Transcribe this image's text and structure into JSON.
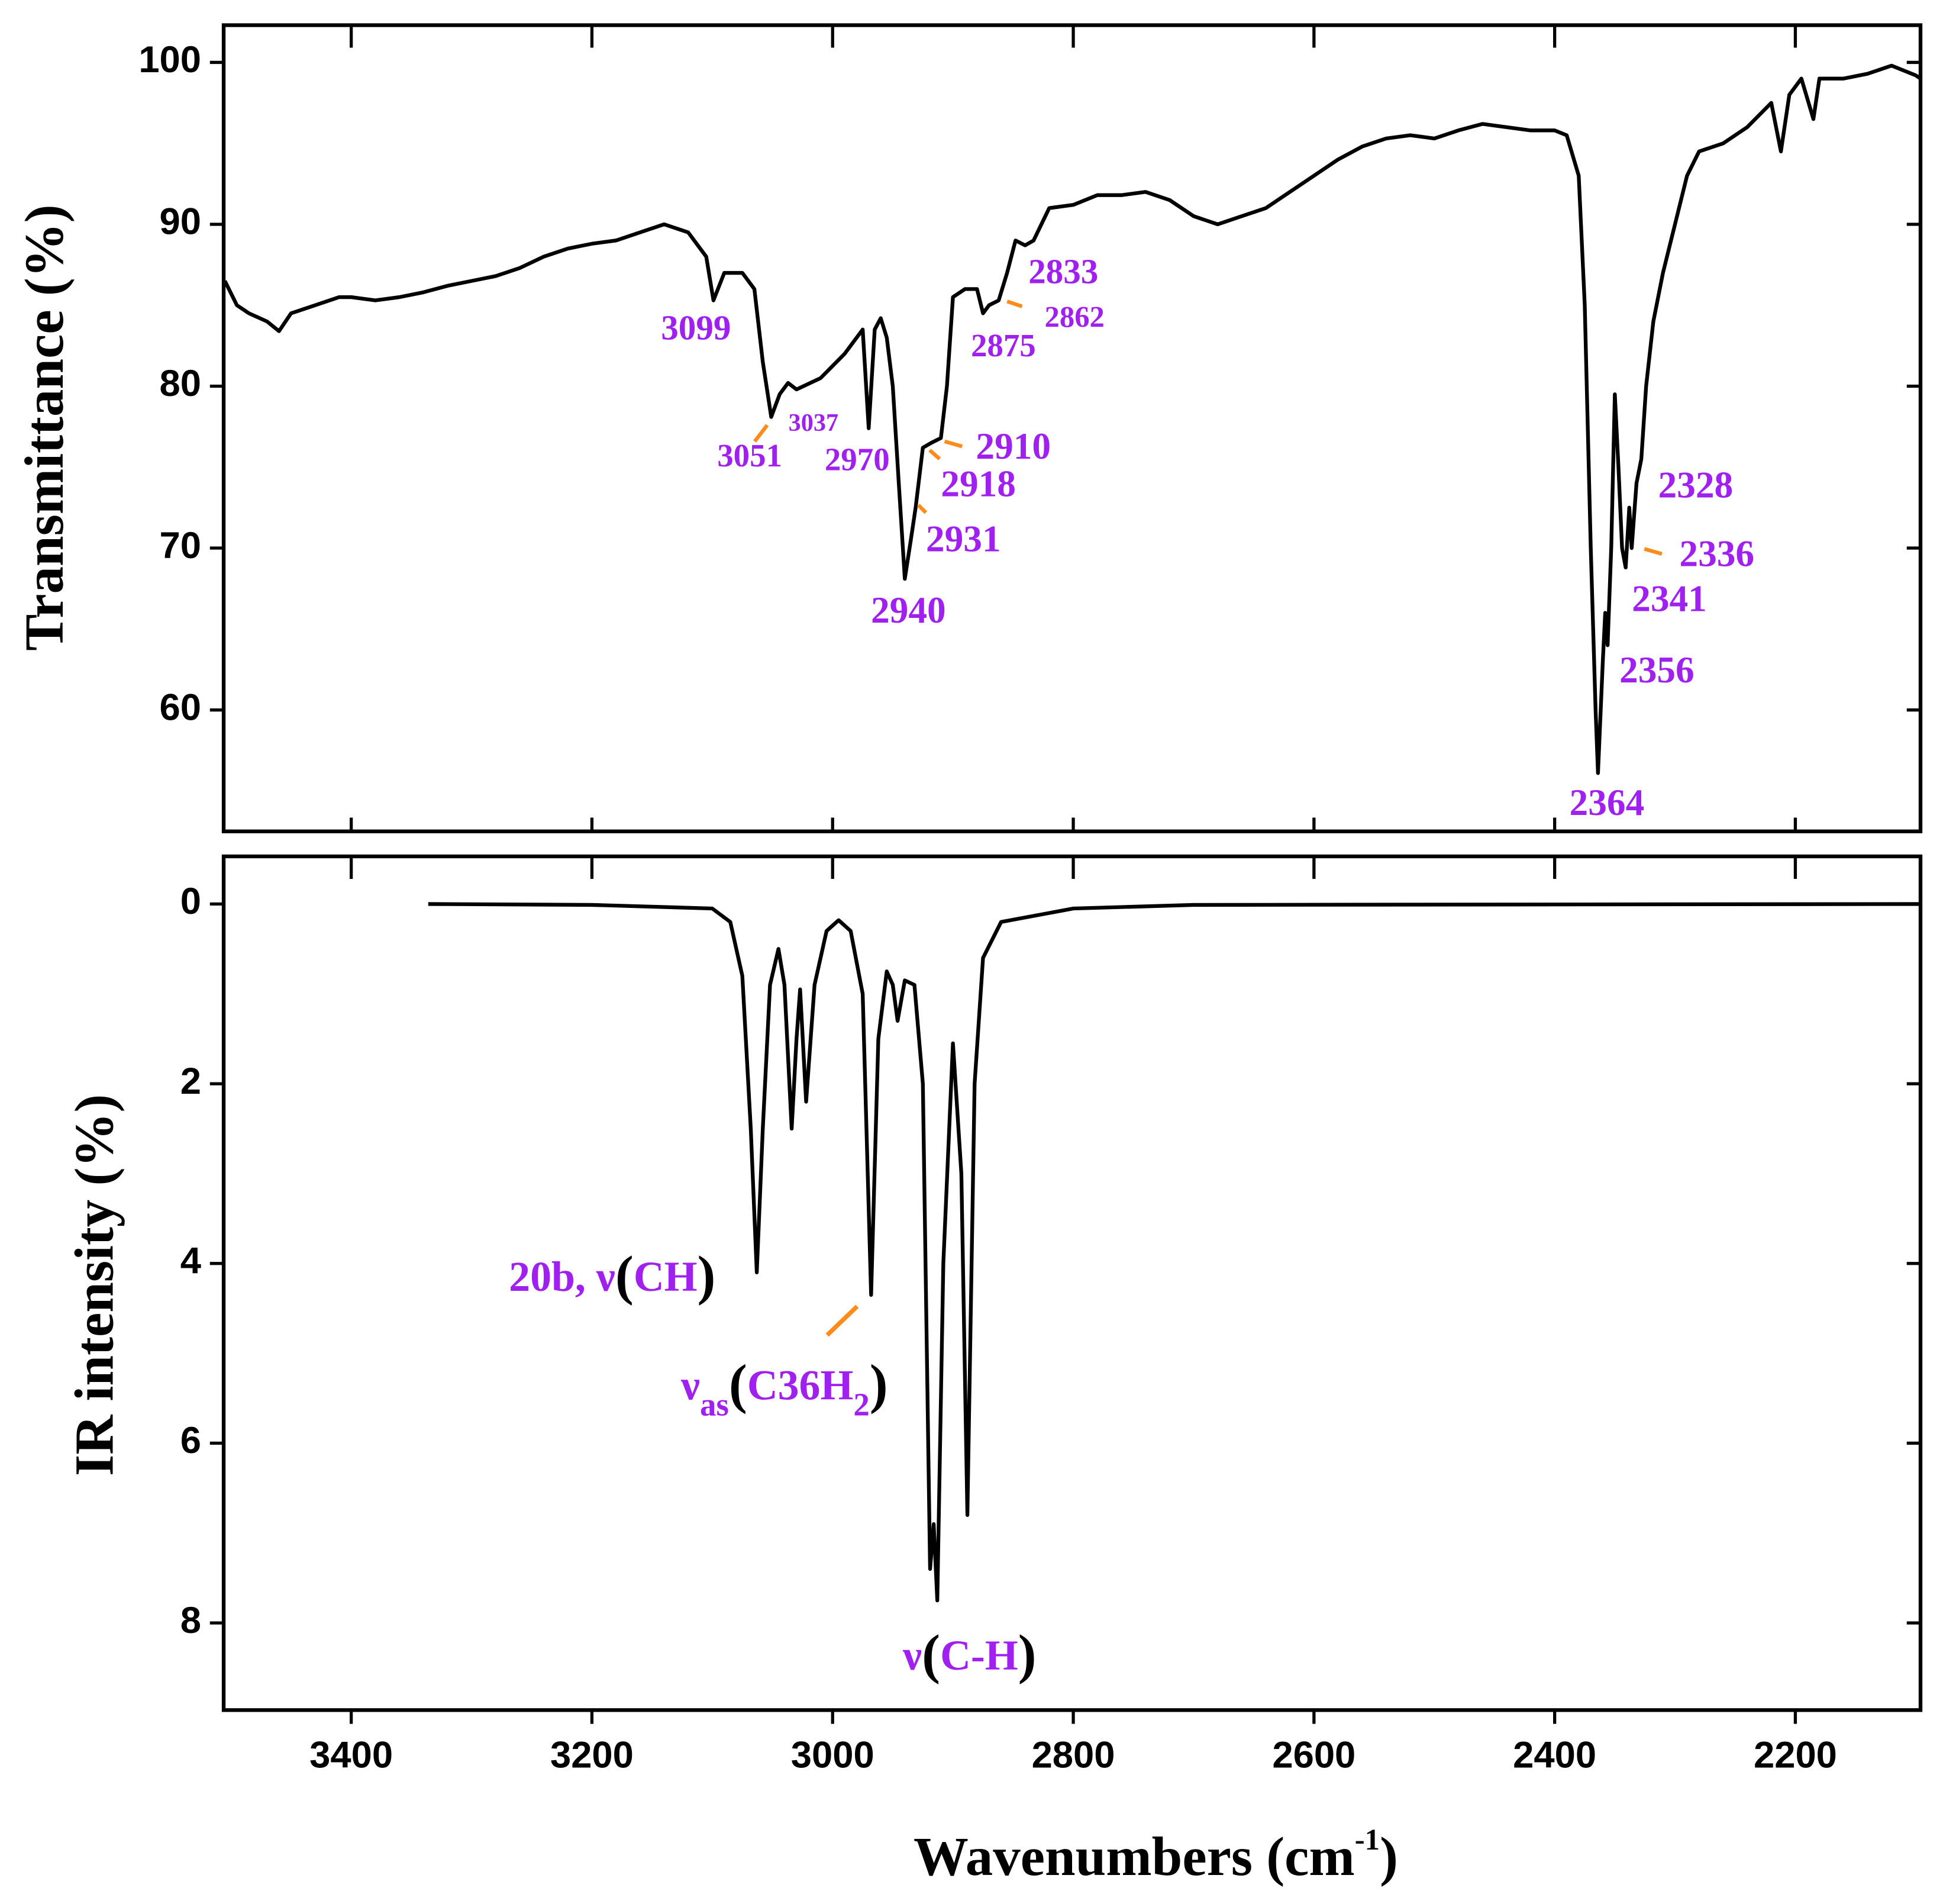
{
  "chart_data": [
    {
      "type": "line",
      "ylabel": "Transmittance (%)",
      "color": "#000000",
      "xlim": [
        3506,
        2096
      ],
      "ylim": [
        52.5,
        102.3
      ],
      "yticks": [
        60,
        70,
        80,
        90,
        100
      ],
      "x": [
        3505,
        3495,
        3485,
        3470,
        3460,
        3450,
        3430,
        3410,
        3400,
        3380,
        3360,
        3340,
        3320,
        3300,
        3280,
        3260,
        3240,
        3220,
        3200,
        3180,
        3160,
        3140,
        3120,
        3105,
        3099,
        3090,
        3075,
        3065,
        3058,
        3051,
        3044,
        3037,
        3030,
        3010,
        2990,
        2975,
        2970,
        2965,
        2960,
        2955,
        2950,
        2945,
        2940,
        2935,
        2931,
        2925,
        2918,
        2910,
        2905,
        2900,
        2890,
        2880,
        2875,
        2870,
        2862,
        2855,
        2848,
        2840,
        2833,
        2820,
        2800,
        2780,
        2760,
        2740,
        2720,
        2700,
        2680,
        2660,
        2640,
        2620,
        2600,
        2580,
        2560,
        2540,
        2520,
        2500,
        2480,
        2460,
        2440,
        2420,
        2400,
        2390,
        2380,
        2375,
        2370,
        2366,
        2364,
        2360,
        2358,
        2356,
        2353,
        2350,
        2347,
        2344,
        2341,
        2338,
        2336,
        2332,
        2328,
        2324,
        2318,
        2310,
        2300,
        2290,
        2280,
        2260,
        2240,
        2220,
        2212,
        2205,
        2195,
        2185,
        2180,
        2160,
        2140,
        2120,
        2100,
        2096
      ],
      "values": [
        86.5,
        85,
        84.5,
        84,
        83.4,
        84.5,
        85,
        85.5,
        85.5,
        85.3,
        85.5,
        85.8,
        86.2,
        86.5,
        86.8,
        87.3,
        88,
        88.5,
        88.8,
        89,
        89.5,
        90,
        89.5,
        88,
        85.3,
        87,
        87,
        86,
        81.5,
        78.1,
        79.5,
        80.2,
        79.8,
        80.5,
        82,
        83.5,
        77.4,
        83.5,
        84.2,
        83,
        80,
        74,
        68.1,
        70.5,
        72.5,
        76.2,
        76.5,
        76.8,
        80,
        85.5,
        86,
        86,
        84.5,
        85,
        85.3,
        87,
        89,
        88.7,
        89,
        91,
        91.2,
        91.8,
        91.8,
        92,
        91.5,
        90.5,
        90,
        90.5,
        91,
        92,
        93,
        94,
        94.8,
        95.3,
        95.5,
        95.3,
        95.8,
        96.2,
        96,
        95.8,
        95.8,
        95.5,
        93,
        85,
        70,
        60,
        56.1,
        63,
        66,
        64,
        70,
        79.5,
        75,
        70,
        68.8,
        72.5,
        70,
        74,
        75.5,
        80,
        84,
        87,
        90,
        93,
        94.5,
        95,
        96,
        97.5,
        94.5,
        98,
        99,
        96.5,
        99,
        99,
        99.3,
        99.8,
        99.2,
        99
      ],
      "peak_labels": [
        3099,
        3051,
        3037,
        2970,
        2940,
        2931,
        2918,
        2910,
        2875,
        2862,
        2833,
        2364,
        2356,
        2341,
        2336,
        2328
      ],
      "annotation_color": "#a020f0"
    },
    {
      "type": "line",
      "ylabel": "IR intensity (%)",
      "color": "#000000",
      "xlabel": [
        "Wavenumbers (cm",
        "-1",
        ")"
      ],
      "xlim": [
        3506,
        2096
      ],
      "xticks": [
        3400,
        3200,
        3000,
        2800,
        2600,
        2400,
        2200
      ],
      "ylim": [
        -0.53,
        8.97
      ],
      "y_inverted": true,
      "yticks": [
        0,
        2,
        4,
        6,
        8
      ],
      "x": [
        3336,
        3200,
        3100,
        3085,
        3075,
        3068,
        3063,
        3058,
        3052,
        3045,
        3040,
        3034,
        3030,
        3027,
        3022,
        3015,
        3005,
        2995,
        2985,
        2975,
        2968,
        2962,
        2955,
        2950,
        2946,
        2940,
        2932,
        2925,
        2919,
        2916,
        2913,
        2908,
        2900,
        2893,
        2888,
        2882,
        2875,
        2860,
        2800,
        2700,
        2096
      ],
      "values": [
        0,
        0.01,
        0.05,
        0.2,
        0.8,
        2.5,
        4.1,
        2.5,
        0.9,
        0.5,
        0.9,
        2.5,
        1.5,
        0.95,
        2.2,
        0.9,
        0.3,
        0.18,
        0.3,
        1.0,
        4.35,
        1.5,
        0.75,
        0.9,
        1.3,
        0.85,
        0.9,
        2.0,
        7.4,
        6.9,
        7.75,
        4,
        1.55,
        3,
        6.8,
        2,
        0.6,
        0.2,
        0.05,
        0.01,
        0
      ],
      "annotations": [
        [
          "20b, ν",
          "(",
          "CH",
          ")"
        ],
        [
          "ν",
          "as",
          "(",
          "C36H",
          "2",
          ")"
        ],
        [
          "ν",
          "(",
          "C-H",
          ")"
        ]
      ],
      "annotation_color": "#a020f0"
    }
  ]
}
